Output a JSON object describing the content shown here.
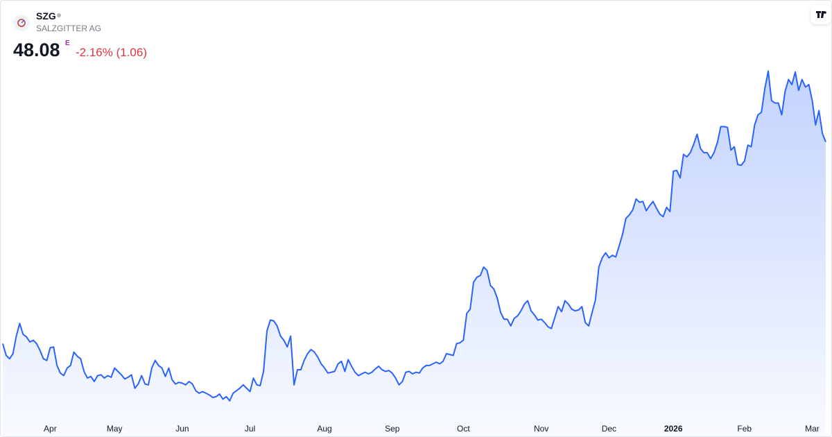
{
  "header": {
    "symbol": "SZG",
    "name": "SALZGITTER AG",
    "price": "48.08",
    "price_flag": "E",
    "change": "-2.16% (1.06)"
  },
  "chart_data": {
    "type": "area",
    "color": "#2962ff",
    "ylim": [
      13,
      60
    ],
    "xticks": [
      {
        "value": 14,
        "label": "Apr"
      },
      {
        "value": 33,
        "label": "May"
      },
      {
        "value": 53,
        "label": "Jun"
      },
      {
        "value": 73,
        "label": "Jul"
      },
      {
        "value": 95,
        "label": "Aug"
      },
      {
        "value": 115,
        "label": "Sep"
      },
      {
        "value": 136,
        "label": "Oct"
      },
      {
        "value": 159,
        "label": "Nov"
      },
      {
        "value": 179,
        "label": "Dec"
      },
      {
        "value": 198,
        "label": "2026"
      },
      {
        "value": 219,
        "label": "Feb"
      },
      {
        "value": 239,
        "label": "Mar"
      }
    ],
    "values": [
      24.1,
      22.7,
      22.3,
      22.9,
      25.0,
      26.5,
      25.2,
      24.9,
      24.3,
      24.5,
      24.1,
      23.3,
      22.3,
      22.1,
      23.6,
      23.7,
      21.5,
      20.6,
      20.3,
      21.2,
      21.5,
      23.1,
      22.6,
      22.3,
      20.8,
      20.0,
      20.2,
      19.6,
      20.3,
      20.4,
      20.0,
      20.3,
      20.1,
      21.2,
      20.8,
      20.4,
      19.9,
      20.1,
      20.4,
      18.8,
      19.3,
      20.3,
      19.3,
      19.2,
      21.2,
      22.1,
      21.5,
      21.2,
      20.2,
      21.2,
      19.8,
      19.3,
      19.5,
      19.4,
      19.2,
      19.6,
      19.3,
      18.5,
      18.2,
      18.4,
      18.2,
      18.0,
      17.7,
      17.8,
      18.1,
      17.5,
      17.8,
      17.3,
      18.2,
      18.5,
      18.8,
      19.2,
      18.8,
      18.4,
      20.0,
      19.2,
      19.1,
      20.8,
      25.6,
      26.9,
      26.8,
      26.2,
      25.0,
      24.5,
      23.7,
      25.0,
      19.2,
      21.0,
      21.0,
      22.1,
      22.9,
      23.4,
      23.1,
      22.5,
      21.7,
      21.2,
      20.6,
      20.7,
      20.8,
      21.7,
      22.0,
      20.8,
      22.2,
      21.4,
      20.7,
      20.3,
      20.5,
      20.7,
      20.5,
      20.7,
      21.1,
      21.4,
      21.0,
      20.8,
      20.9,
      20.6,
      20.0,
      19.2,
      19.6,
      20.7,
      20.8,
      20.5,
      20.7,
      20.6,
      21.2,
      21.5,
      21.5,
      21.7,
      21.9,
      21.7,
      22.0,
      22.9,
      22.8,
      22.7,
      24.1,
      24.2,
      24.5,
      27.7,
      28.2,
      31.4,
      32.0,
      32.2,
      33.2,
      32.8,
      31.0,
      30.6,
      29.5,
      27.8,
      27.0,
      27.0,
      26.2,
      27.1,
      27.4,
      28.0,
      28.8,
      29.2,
      28.0,
      27.5,
      26.9,
      27.0,
      26.6,
      26.1,
      25.9,
      27.2,
      28.5,
      27.9,
      29.2,
      28.8,
      28.2,
      28.0,
      28.1,
      28.5,
      26.6,
      26.2,
      27.8,
      29.3,
      33.2,
      34.3,
      34.9,
      34.3,
      34.6,
      34.4,
      35.7,
      37.1,
      39.0,
      39.4,
      40.0,
      41.3,
      40.9,
      41.0,
      39.9,
      40.5,
      41.0,
      40.2,
      39.5,
      39.2,
      40.3,
      39.8,
      44.6,
      44.7,
      43.8,
      46.6,
      46.3,
      46.8,
      47.8,
      49.0,
      47.3,
      46.8,
      46.8,
      46.1,
      46.8,
      48.0,
      49.9,
      49.9,
      49.8,
      47.1,
      47.5,
      45.4,
      45.3,
      45.8,
      47.7,
      47.5,
      50.1,
      51.3,
      51.6,
      54.4,
      56.5,
      53.0,
      52.7,
      52.7,
      51.3,
      54.1,
      55.5,
      54.9,
      56.4,
      54.2,
      55.5,
      54.6,
      54.9,
      53.0,
      50.1,
      51.8,
      49.1,
      48.08
    ]
  }
}
